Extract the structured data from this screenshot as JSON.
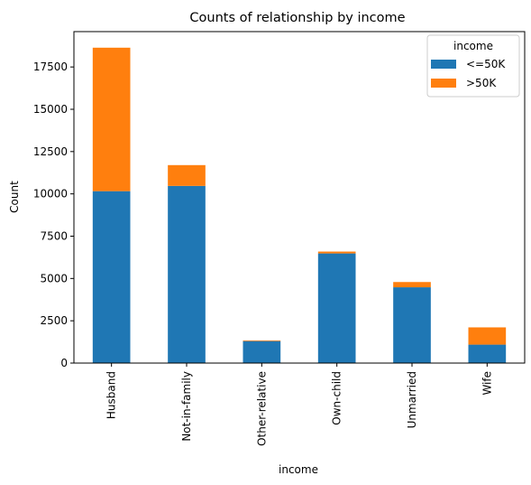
{
  "chart_data": {
    "type": "bar",
    "stacked": true,
    "title": "Counts of relationship by income",
    "xlabel": "income",
    "ylabel": "Count",
    "categories": [
      "Husband",
      "Not-in-family",
      "Other-relative",
      "Own-child",
      "Unmarried",
      "Wife"
    ],
    "series": [
      {
        "name": "<=50K",
        "color": "#1f77b4",
        "values": [
          10160,
          10470,
          1300,
          6480,
          4480,
          1090
        ]
      },
      {
        "name": ">50K",
        "color": "#ff7f0e",
        "values": [
          8480,
          1230,
          40,
          110,
          310,
          1020
        ]
      }
    ],
    "ylim": [
      0,
      19590
    ],
    "yticks": [
      0,
      2500,
      5000,
      7500,
      10000,
      12500,
      15000,
      17500
    ],
    "ytick_labels": [
      "0",
      "2500",
      "5000",
      "7500",
      "10000",
      "12500",
      "15000",
      "17500"
    ],
    "legend": {
      "title": "income",
      "placement": "top-right"
    },
    "grid": false
  }
}
